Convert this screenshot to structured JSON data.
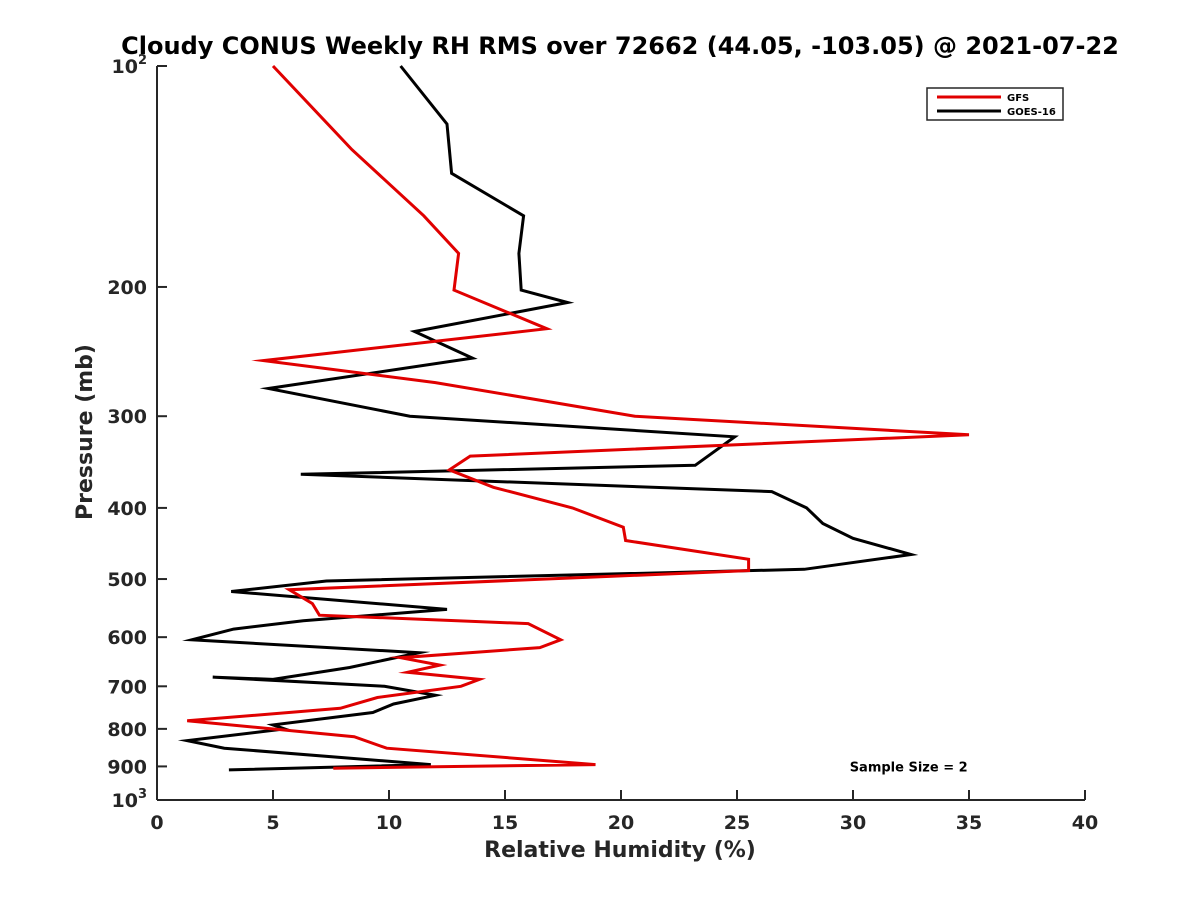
{
  "chart_data": {
    "type": "line",
    "title": "Cloudy CONUS Weekly RH RMS over 72662 (44.05, -103.05) @ 2021-07-22",
    "xlabel": "Relative Humidity (%)",
    "ylabel": "Pressure (mb)",
    "xlim": [
      0,
      40
    ],
    "ylim": [
      1000,
      100
    ],
    "y_scale": "log",
    "y_reversed": true,
    "grid": false,
    "legend_position": "top-right",
    "x_ticks": [
      0,
      5,
      10,
      15,
      20,
      25,
      30,
      35,
      40
    ],
    "x_tick_labels": [
      "0",
      "5",
      "10",
      "15",
      "20",
      "25",
      "30",
      "35",
      "40"
    ],
    "y_ticks": [
      {
        "value": 100,
        "base": "10",
        "exp": "2"
      },
      {
        "value": 200,
        "label": "200"
      },
      {
        "value": 300,
        "label": "300"
      },
      {
        "value": 400,
        "label": "400"
      },
      {
        "value": 500,
        "label": "500"
      },
      {
        "value": 600,
        "label": "600"
      },
      {
        "value": 700,
        "label": "700"
      },
      {
        "value": 800,
        "label": "800"
      },
      {
        "value": 900,
        "label": "900"
      },
      {
        "value": 1000,
        "base": "10",
        "exp": "3"
      }
    ],
    "series": [
      {
        "name": "GFS",
        "color": "#e00000",
        "x": [
          5.0,
          8.4,
          11.5,
          13.0,
          12.8,
          16.8,
          4.6,
          12.0,
          20.6,
          35.0,
          13.5,
          12.6,
          14.5,
          17.9,
          20.1,
          20.2,
          25.5,
          25.5,
          5.7,
          6.7,
          7.0,
          16.0,
          17.4,
          16.5,
          10.5,
          12.2,
          10.8,
          13.9,
          13.1,
          9.5,
          7.9,
          1.3,
          8.5,
          9.9,
          18.9,
          7.6
        ],
        "y": [
          100,
          130,
          160,
          180,
          202,
          228,
          252,
          270,
          300,
          318,
          340,
          355,
          375,
          400,
          425,
          443,
          470,
          487,
          517,
          540,
          560,
          575,
          605,
          620,
          640,
          655,
          670,
          685,
          700,
          725,
          750,
          780,
          820,
          850,
          895,
          905
        ]
      },
      {
        "name": "GOES-16",
        "color": "#000000",
        "x": [
          10.5,
          12.5,
          12.7,
          15.8,
          15.6,
          15.7,
          17.7,
          11.1,
          13.6,
          4.8,
          10.9,
          24.9,
          23.2,
          6.2,
          26.5,
          28.0,
          28.7,
          30.0,
          32.5,
          27.9,
          7.3,
          3.2,
          12.5,
          6.3,
          3.3,
          1.5,
          11.3,
          8.3,
          5.0,
          2.4,
          9.8,
          12.0,
          10.2,
          9.3,
          5.0,
          5.5,
          1.3,
          2.9,
          11.8,
          3.1
        ],
        "y": [
          100,
          120,
          140,
          160,
          180,
          202,
          210,
          230,
          250,
          275,
          300,
          320,
          350,
          360,
          380,
          400,
          420,
          440,
          463,
          485,
          503,
          520,
          550,
          570,
          585,
          605,
          630,
          660,
          685,
          680,
          700,
          720,
          740,
          760,
          790,
          800,
          830,
          850,
          895,
          910
        ]
      }
    ],
    "annotations": [
      {
        "text": "Sample Size = 2",
        "x": 32.4,
        "y": 900
      }
    ]
  }
}
